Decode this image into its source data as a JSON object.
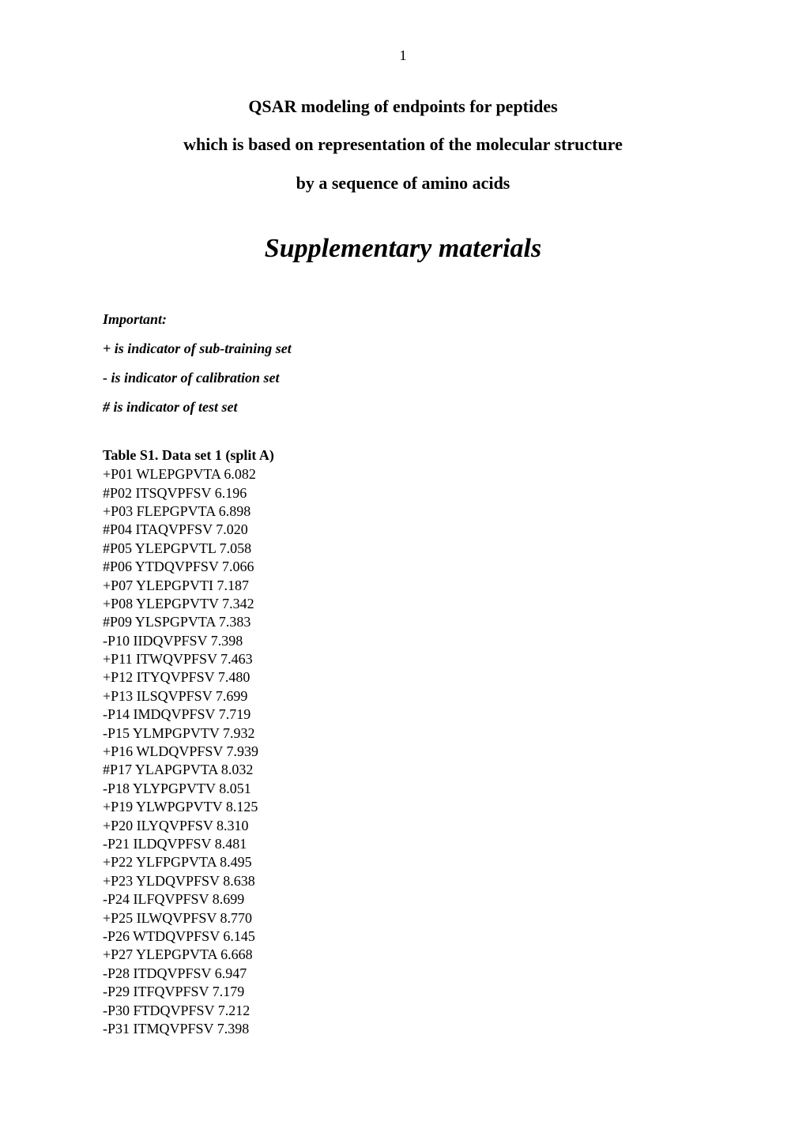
{
  "page_number": "1",
  "title": {
    "line1": "QSAR modeling of endpoints for peptides",
    "line2": "which is based on representation of the molecular structure",
    "line3": "by a sequence of amino acids"
  },
  "section_heading": "Supplementary materials",
  "important_label": "Important:",
  "legend": {
    "plus": "+ is indicator of sub-training set",
    "minus": "- is indicator of calibration set",
    "hash": "# is indicator of test set"
  },
  "table": {
    "title": "Table S1. Data set 1 (split A)",
    "rows": [
      "+P01 WLEPGPVTA 6.082",
      "#P02 ITSQVPFSV 6.196",
      "+P03 FLEPGPVTA 6.898",
      "#P04 ITAQVPFSV 7.020",
      "#P05 YLEPGPVTL 7.058",
      "#P06 YTDQVPFSV 7.066",
      "+P07 YLEPGPVTI 7.187",
      "+P08 YLEPGPVTV 7.342",
      "#P09 YLSPGPVTA 7.383",
      "-P10 IIDQVPFSV 7.398",
      "+P11 ITWQVPFSV 7.463",
      "+P12 ITYQVPFSV 7.480",
      "+P13 ILSQVPFSV 7.699",
      "-P14 IMDQVPFSV 7.719",
      "-P15 YLMPGPVTV 7.932",
      "+P16 WLDQVPFSV 7.939",
      "#P17 YLAPGPVTA 8.032",
      "-P18 YLYPGPVTV 8.051",
      "+P19 YLWPGPVTV 8.125",
      "+P20 ILYQVPFSV 8.310",
      "-P21 ILDQVPFSV 8.481",
      "+P22 YLFPGPVTA 8.495",
      "+P23 YLDQVPFSV 8.638",
      "-P24 ILFQVPFSV 8.699",
      "+P25 ILWQVPFSV 8.770",
      "-P26 WTDQVPFSV 6.145",
      "+P27 YLEPGPVTA 6.668",
      "-P28 ITDQVPFSV 6.947",
      "-P29 ITFQVPFSV 7.179",
      "-P30 FTDQVPFSV 7.212",
      "-P31 ITMQVPFSV 7.398"
    ]
  },
  "colors": {
    "background": "#ffffff",
    "text": "#000000"
  },
  "fonts": {
    "family": "Times New Roman",
    "body_size_pt": 12,
    "title_size_pt": 14,
    "heading_size_pt": 22
  }
}
